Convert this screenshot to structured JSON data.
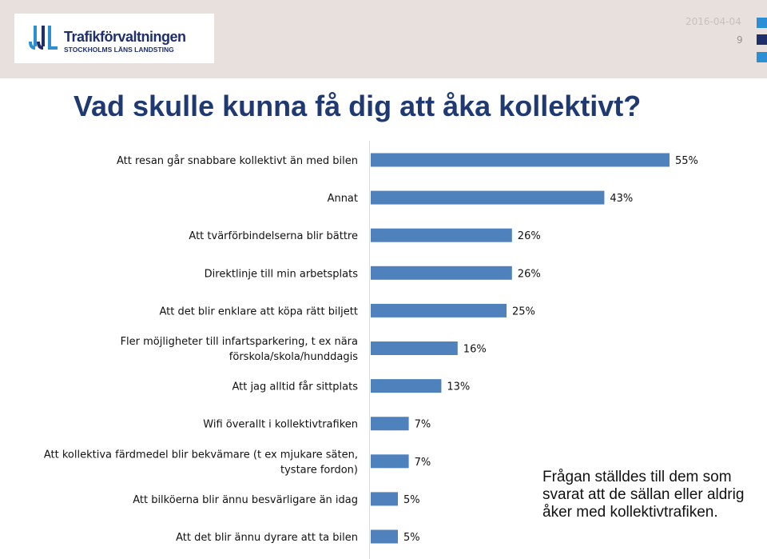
{
  "header": {
    "logo_name": "Trafikförvaltningen",
    "logo_sub": "STOCKHOLMS LÄNS LANDSTING",
    "date": "2016-04-04",
    "page_number": "9",
    "accent_color": "#2c8fd4",
    "brand_color": "#1f2f6b",
    "band_color": "#e8e0dd"
  },
  "slide": {
    "title": "Vad skulle kunna få dig att åka kollektivt?",
    "note": "Frågan ställdes till dem som svarat att de sällan eller aldrig åker med kollektivtrafiken."
  },
  "chart_data": {
    "type": "bar",
    "orientation": "horizontal",
    "bar_color": "#4f81bd",
    "unit": "%",
    "xlim": [
      0,
      60
    ],
    "grid": false,
    "categories": [
      [
        "Att resan går snabbare kollektivt än med bilen"
      ],
      [
        "Annat"
      ],
      [
        "Att tvärförbindelserna blir bättre"
      ],
      [
        "Direktlinje till min arbetsplats"
      ],
      [
        "Att det blir enklare att köpa rätt biljett"
      ],
      [
        "Fler möjligheter till infartsparkering, t ex nära",
        "förskola/skola/hunddagis"
      ],
      [
        "Att jag alltid får sittplats"
      ],
      [
        "Wifi överallt i kollektivtrafiken"
      ],
      [
        "Att kollektiva färdmedel blir bekvämare (t ex mjukare säten,",
        "tystare fordon)"
      ],
      [
        "Att bilköerna blir ännu besvärligare än idag"
      ],
      [
        "Att det blir ännu dyrare att ta bilen"
      ]
    ],
    "values": [
      55,
      43,
      26,
      26,
      25,
      16,
      13,
      7,
      7,
      5,
      5
    ],
    "value_labels": [
      "55%",
      "43%",
      "26%",
      "26%",
      "25%",
      "16%",
      "13%",
      "7%",
      "7%",
      "5%",
      "5%"
    ]
  }
}
